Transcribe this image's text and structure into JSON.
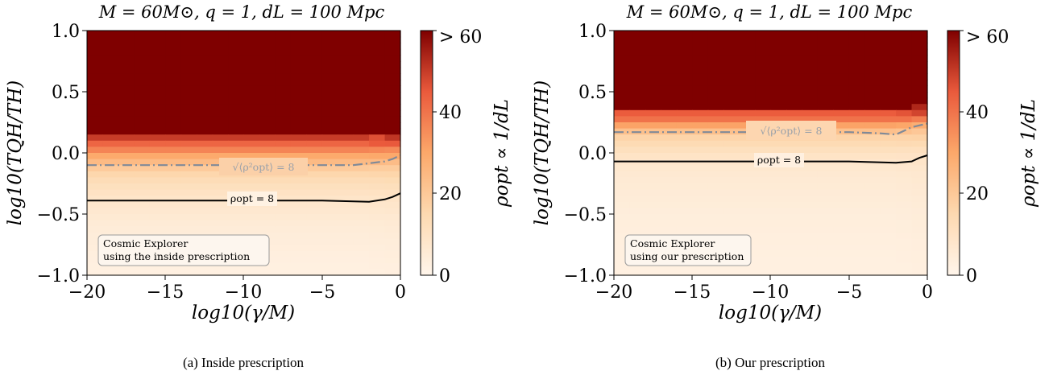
{
  "figure": {
    "panels": [
      {
        "title": "M = 60M⊙, q = 1, dL = 100 Mpc",
        "caption": "(a) Inside prescription",
        "annotation": [
          "Cosmic Explorer",
          "using the inside prescription"
        ],
        "contour_labels": [
          "√⟨ρ²opt⟩ = 8",
          "ρopt = 8"
        ]
      },
      {
        "title": "M = 60M⊙, q = 1, dL = 100 Mpc",
        "caption": "(b) Our prescription",
        "annotation": [
          "Cosmic Explorer",
          "using our prescription"
        ],
        "contour_labels": [
          "√⟨ρ²opt⟩ = 8",
          "ρopt = 8"
        ]
      }
    ],
    "xlabel": "log10(γ/M)",
    "ylabel": "log10(TQH/TH)",
    "colorbar_label": "ρopt ∝ 1/dL",
    "x_ticks": [
      "−20",
      "−15",
      "−10",
      "−5",
      "0"
    ],
    "y_ticks": [
      "1.0",
      "0.5",
      "0.0",
      "−0.5",
      "−1.0"
    ],
    "colorbar_ticks": [
      "> 60",
      "40",
      "20",
      "0"
    ]
  },
  "chart_data": [
    {
      "type": "heatmap",
      "title": "M = 60M⊙, q = 1, dL = 100 Mpc",
      "xlabel": "log10(γ/M)",
      "ylabel": "log10(TQH/TH)",
      "xlim": [
        -20,
        0
      ],
      "ylim": [
        -1.0,
        1.0
      ],
      "x_ticks": [
        -20,
        -15,
        -10,
        -5,
        0
      ],
      "y_ticks": [
        -1.0,
        -0.5,
        0.0,
        0.5,
        1.0
      ],
      "colorbar": {
        "label": "ρopt ∝ 1/dL",
        "range": [
          0,
          60
        ],
        "ticks": [
          0,
          20,
          40,
          60
        ],
        "top_label": "> 60",
        "colors": [
          "#fff5eb",
          "#fdd9b0",
          "#fca86a",
          "#ea5a3c",
          "#7f0000"
        ]
      },
      "profile": [
        [
          1.0,
          60
        ],
        [
          0.15,
          60
        ],
        [
          0.11,
          44
        ],
        [
          0.05,
          42
        ],
        [
          0.0,
          32
        ],
        [
          -0.05,
          27
        ],
        [
          -0.1,
          22
        ],
        [
          -0.15,
          17
        ],
        [
          -0.25,
          12
        ],
        [
          -0.4,
          8
        ],
        [
          -0.6,
          5
        ],
        [
          -0.8,
          3.5
        ],
        [
          -1.0,
          2.5
        ]
      ],
      "contours": [
        {
          "label": "√⟨ρ²opt⟩ = 8",
          "style": "dashdot",
          "color": "#808a98",
          "x": [
            -20,
            -15,
            -10,
            -5,
            -3,
            -1,
            -0.5,
            0
          ],
          "y": [
            -0.1,
            -0.1,
            -0.1,
            -0.1,
            -0.1,
            -0.07,
            -0.05,
            -0.02
          ]
        },
        {
          "label": "ρopt = 8",
          "style": "solid",
          "color": "#000000",
          "x": [
            -20,
            -15,
            -10,
            -5,
            -2,
            -1,
            -0.5,
            0
          ],
          "y": [
            -0.39,
            -0.39,
            -0.39,
            -0.39,
            -0.4,
            -0.38,
            -0.36,
            -0.33
          ]
        }
      ],
      "annotation": "Cosmic Explorer using the inside prescription"
    },
    {
      "type": "heatmap",
      "title": "M = 60M⊙, q = 1, dL = 100 Mpc",
      "xlabel": "log10(γ/M)",
      "ylabel": "log10(TQH/TH)",
      "xlim": [
        -20,
        0
      ],
      "ylim": [
        -1.0,
        1.0
      ],
      "x_ticks": [
        -20,
        -15,
        -10,
        -5,
        0
      ],
      "y_ticks": [
        -1.0,
        -0.5,
        0.0,
        0.5,
        1.0
      ],
      "colorbar": {
        "label": "ρopt ∝ 1/dL",
        "range": [
          0,
          60
        ],
        "ticks": [
          0,
          20,
          40,
          60
        ],
        "top_label": "> 60",
        "colors": [
          "#fff5eb",
          "#fdd9b0",
          "#fca86a",
          "#ea5a3c",
          "#7f0000"
        ]
      },
      "profile": [
        [
          1.0,
          60
        ],
        [
          0.36,
          60
        ],
        [
          0.33,
          45
        ],
        [
          0.27,
          40
        ],
        [
          0.22,
          30
        ],
        [
          0.17,
          22
        ],
        [
          0.12,
          16
        ],
        [
          0.05,
          13
        ],
        [
          0.0,
          10
        ],
        [
          -0.07,
          8
        ],
        [
          -0.2,
          6
        ],
        [
          -0.5,
          4
        ],
        [
          -0.8,
          3
        ],
        [
          -1.0,
          2.5
        ]
      ],
      "contours": [
        {
          "label": "√⟨ρ²opt⟩ = 8",
          "style": "dashdot",
          "color": "#808a98",
          "x": [
            -20,
            -15,
            -10,
            -5,
            -3,
            -2,
            -1,
            0
          ],
          "y": [
            0.17,
            0.17,
            0.17,
            0.17,
            0.16,
            0.15,
            0.21,
            0.24
          ]
        },
        {
          "label": "ρopt = 8",
          "style": "solid",
          "color": "#000000",
          "x": [
            -20,
            -15,
            -10,
            -5,
            -2,
            -1,
            -0.5,
            0
          ],
          "y": [
            -0.07,
            -0.07,
            -0.07,
            -0.07,
            -0.08,
            -0.07,
            -0.04,
            -0.02
          ]
        }
      ],
      "annotation": "Cosmic Explorer using our prescription"
    }
  ]
}
